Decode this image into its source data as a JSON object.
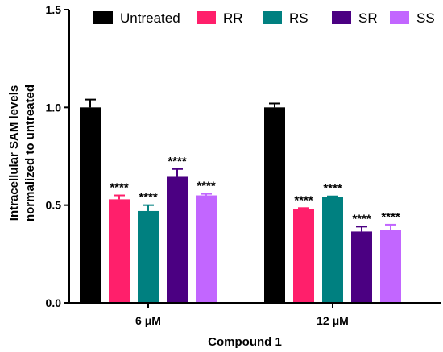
{
  "chart_data": {
    "type": "bar",
    "categories": [
      "6 μM",
      "12 μM"
    ],
    "series": [
      {
        "name": "Untreated",
        "color": "#000000",
        "values": [
          1.0,
          1.0
        ],
        "errors": [
          0.04,
          0.02
        ],
        "labels": [
          "",
          ""
        ]
      },
      {
        "name": "RR",
        "color": "#ff1f6b",
        "values": [
          0.53,
          0.48
        ],
        "errors": [
          0.02,
          0.005
        ],
        "labels": [
          "****",
          "****"
        ]
      },
      {
        "name": "RS",
        "color": "#008080",
        "values": [
          0.47,
          0.54
        ],
        "errors": [
          0.03,
          0.005
        ],
        "labels": [
          "****",
          "****"
        ]
      },
      {
        "name": "SR",
        "color": "#4b0082",
        "values": [
          0.645,
          0.365
        ],
        "errors": [
          0.04,
          0.025
        ],
        "labels": [
          "****",
          "****"
        ]
      },
      {
        "name": "SS",
        "color": "#c266ff",
        "values": [
          0.55,
          0.375
        ],
        "errors": [
          0.008,
          0.025
        ],
        "labels": [
          "****",
          "****"
        ]
      }
    ],
    "xlabel": "Compound 1",
    "ylabel_lines": [
      "Intracellular SAM levels",
      "normalized to untreated"
    ],
    "ylim": [
      0.0,
      1.5
    ],
    "yticks": [
      0.0,
      0.5,
      1.0,
      1.5
    ],
    "ytick_labels": [
      "0.0",
      "0.5",
      "1.0",
      "1.5"
    ],
    "grid": false,
    "legend_position": "top"
  }
}
